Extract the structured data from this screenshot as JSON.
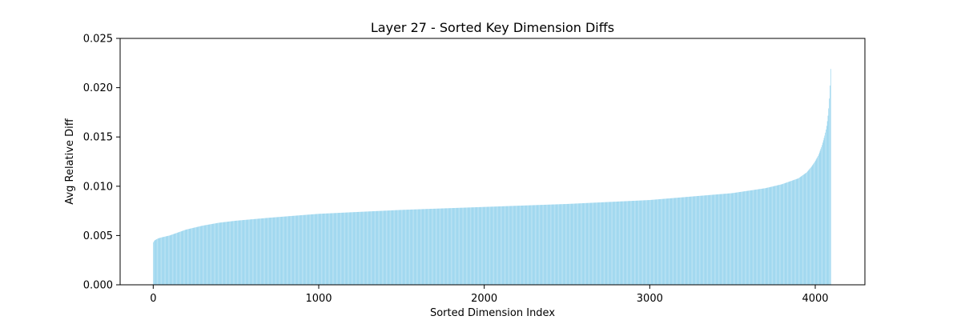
{
  "chart_data": {
    "type": "bar",
    "title": "Layer 27 - Sorted Key Dimension Diffs",
    "xlabel": "Sorted Dimension Index",
    "ylabel": "Avg Relative Diff",
    "bar_color": "#87ceeb",
    "xlim": [
      -200,
      4300
    ],
    "ylim": [
      0,
      0.025
    ],
    "x_ticks": [
      0,
      1000,
      2000,
      3000,
      4000
    ],
    "x_tick_labels": [
      "0",
      "1000",
      "2000",
      "3000",
      "4000"
    ],
    "y_ticks": [
      0.0,
      0.005,
      0.01,
      0.015,
      0.02,
      0.025
    ],
    "y_tick_labels": [
      "0.000",
      "0.005",
      "0.010",
      "0.015",
      "0.020",
      "0.025"
    ],
    "grid": false,
    "legend": "none",
    "n_points": 4096,
    "x": [
      0,
      5,
      10,
      20,
      30,
      50,
      75,
      100,
      150,
      200,
      300,
      400,
      500,
      700,
      1000,
      1500,
      2000,
      2500,
      3000,
      3500,
      3700,
      3800,
      3850,
      3900,
      3950,
      3980,
      4000,
      4020,
      4040,
      4050,
      4060,
      4070,
      4075,
      4080,
      4085,
      4090,
      4095
    ],
    "y": [
      0.0042,
      0.0044,
      0.0045,
      0.0046,
      0.0047,
      0.0048,
      0.0049,
      0.005,
      0.0053,
      0.0056,
      0.006,
      0.0063,
      0.0065,
      0.0068,
      0.0072,
      0.0076,
      0.0079,
      0.0082,
      0.0086,
      0.0093,
      0.0098,
      0.0102,
      0.0105,
      0.0108,
      0.0114,
      0.012,
      0.0125,
      0.0131,
      0.014,
      0.0146,
      0.0152,
      0.016,
      0.0166,
      0.0173,
      0.0183,
      0.0198,
      0.0219
    ]
  }
}
